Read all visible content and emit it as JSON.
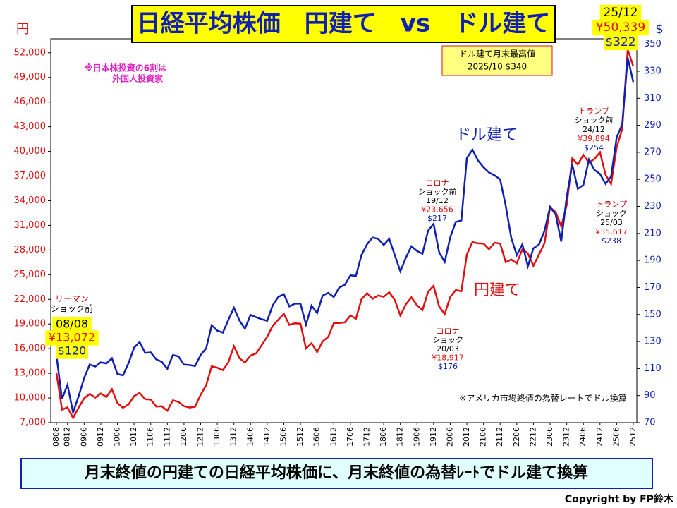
{
  "chart_data": {
    "type": "line",
    "title": "日経平均株価　円建て　vs　ドル建て",
    "y_axis_label": "円",
    "y2_axis_label": "$",
    "note_left": [
      "※日本株投資の6割は",
      "外国人投資家"
    ],
    "note_max": [
      "ドル建て月末最高値",
      "2025/10 $340"
    ],
    "note_fx": "※アメリカ市場終値の為替レートでドル換算",
    "footer": "月末終値の円建ての日経平均株価に、月末終値の為替ﾚｰﾄでドル建て換算",
    "copyright": "Copyright by FP鈴木",
    "annotations": [
      {
        "lines": [
          "リーマン",
          "ショック前",
          "08/08",
          "¥13,072",
          "$120"
        ]
      },
      {
        "lines": [
          "コロナ",
          "ショック前",
          "19/12",
          "¥23,656",
          "$217"
        ]
      },
      {
        "lines": [
          "コロナ",
          "ショック",
          "20/03",
          "¥18,917",
          "$176"
        ]
      },
      {
        "lines": [
          "トランプ",
          "ショック前",
          "24/12",
          "¥39,894",
          "$254"
        ]
      },
      {
        "lines": [
          "トランプ",
          "ショック",
          "25/03",
          "¥35,617",
          "$238"
        ]
      },
      {
        "lines": [
          "25/12",
          "¥50,339",
          "$322"
        ]
      }
    ],
    "categories": [
      "0808",
      null,
      "0812",
      null,
      null,
      "0906",
      null,
      null,
      "0912",
      null,
      null,
      "1006",
      null,
      null,
      "1012",
      null,
      null,
      "1106",
      null,
      null,
      "1112",
      null,
      null,
      "1206",
      null,
      null,
      "1212",
      null,
      null,
      "1306",
      null,
      null,
      "1312",
      null,
      null,
      "1406",
      null,
      null,
      "1412",
      null,
      null,
      "1506",
      null,
      null,
      "1512",
      null,
      null,
      "1606",
      null,
      null,
      "1612",
      null,
      null,
      "1706",
      null,
      null,
      "1712",
      null,
      null,
      "1806",
      null,
      null,
      "1812",
      null,
      null,
      "1906",
      null,
      null,
      "1912",
      null,
      null,
      "2006",
      null,
      null,
      "2012",
      null,
      null,
      "2106",
      null,
      null,
      "2112",
      null,
      null,
      "2206",
      null,
      null,
      "2212",
      null,
      null,
      "2306",
      null,
      null,
      "2312",
      null,
      null,
      "2406",
      null,
      null,
      "2412",
      null,
      null,
      "2506",
      null,
      null,
      "2512"
    ],
    "series": [
      {
        "name": "円建て",
        "color": "#e01010",
        "axis": "y",
        "values": [
          13072,
          8577,
          8860,
          7568,
          8828,
          9958,
          10493,
          10035,
          10546,
          10126,
          11057,
          9383,
          8824,
          9202,
          10229,
          10624,
          9850,
          9816,
          8955,
          8988,
          8455,
          9723,
          9521,
          9007,
          8840,
          8928,
          10395,
          11559,
          13861,
          13677,
          13389,
          14327,
          16291,
          14841,
          14304,
          15162,
          15425,
          16414,
          17451,
          18798,
          19520,
          20236,
          18890,
          19083,
          19034,
          16027,
          16666,
          15576,
          16887,
          17425,
          19114,
          19119,
          19197,
          20033,
          19646,
          22012,
          22765,
          22068,
          22467,
          22305,
          22865,
          21920,
          20015,
          21385,
          22259,
          21276,
          20704,
          22927,
          23656,
          21143,
          20194,
          22288,
          23140,
          22977,
          27444,
          28966,
          28813,
          28791,
          28089,
          28892,
          28791,
          26526,
          26847,
          26393,
          28091,
          27587,
          26094,
          27445,
          28856,
          33189,
          32619,
          30858,
          33464,
          39166,
          38405,
          39583,
          38647,
          39081,
          39894,
          37155,
          36045,
          40487,
          42718,
          52411,
          50339
        ]
      },
      {
        "name": "ドル建て",
        "color": "#1020b0",
        "axis": "y2",
        "values": [
          120,
          87.5,
          98,
          77.5,
          89.6,
          103,
          113,
          111.5,
          114.6,
          113.8,
          117.6,
          106,
          105,
          114,
          125.5,
          129.6,
          121.6,
          122,
          116.8,
          115,
          109.8,
          120,
          119,
          112.9,
          112.6,
          111.9,
          120,
          125,
          142,
          138,
          136.6,
          146,
          155,
          145.5,
          139.5,
          149.7,
          148,
          146.5,
          145.4,
          157,
          163,
          165,
          156,
          158,
          158,
          142.5,
          156.5,
          151,
          164,
          166,
          163,
          170,
          172,
          179,
          178.6,
          194,
          202,
          207,
          206,
          201.5,
          206,
          194,
          182,
          192,
          200.5,
          197,
          195,
          212,
          217,
          196,
          189,
          207,
          218.5,
          219.6,
          265.7,
          272,
          264,
          259,
          255,
          253,
          250,
          230.6,
          206.5,
          194,
          202,
          185.8,
          199,
          201.8,
          212,
          229.7,
          224,
          204,
          237,
          261,
          243,
          245.9,
          264.7,
          257,
          254,
          246.7,
          252,
          281,
          290.6,
          340,
          322
        ]
      }
    ],
    "ylim": [
      7000,
      53700
    ],
    "yticks": [
      {
        "value": 7000,
        "label": "7,000"
      },
      {
        "value": 10000,
        "label": "10,000"
      },
      {
        "value": 13000,
        "label": "13,000"
      },
      {
        "value": 16000,
        "label": "16,000"
      },
      {
        "value": 19000,
        "label": "19,000"
      },
      {
        "value": 22000,
        "label": "22,000"
      },
      {
        "value": 25000,
        "label": "25,000"
      },
      {
        "value": 28000,
        "label": "28,000"
      },
      {
        "value": 31000,
        "label": "31,000"
      },
      {
        "value": 34000,
        "label": "34,000"
      },
      {
        "value": 37000,
        "label": "37,000"
      },
      {
        "value": 40000,
        "label": "40,000"
      },
      {
        "value": 43000,
        "label": "43,000"
      },
      {
        "value": 46000,
        "label": "46,000"
      },
      {
        "value": 49000,
        "label": "49,000"
      },
      {
        "value": 52000,
        "label": "52,000"
      }
    ],
    "y2lim": [
      70,
      354
    ],
    "y2ticks": [
      70,
      90,
      110,
      130,
      150,
      170,
      190,
      210,
      230,
      250,
      270,
      290,
      310,
      330,
      350
    ],
    "grid": false
  }
}
